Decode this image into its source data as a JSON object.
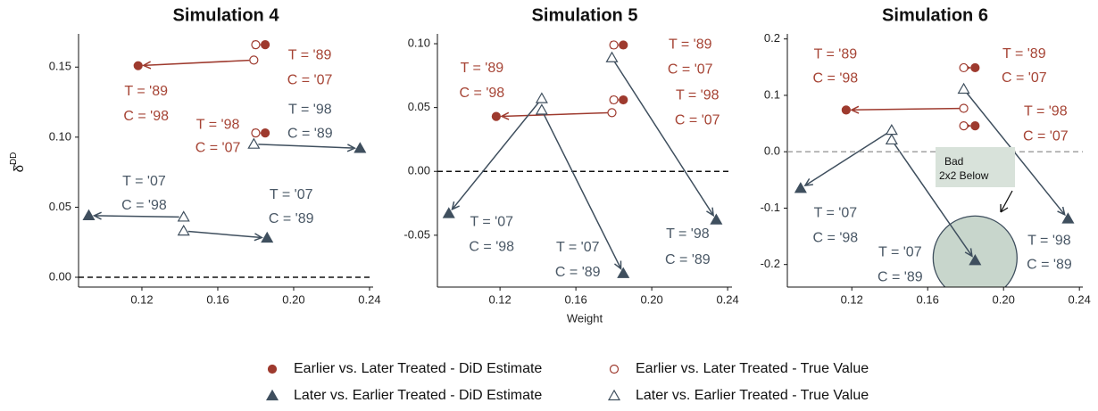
{
  "chart_data": [
    {
      "type": "scatter",
      "title": "Simulation 4",
      "ylabel": "δ̂",
      "ylabel_superscript": "DD",
      "xlim": [
        0.0866,
        0.2419
      ],
      "ylim": [
        -0.007,
        0.1737
      ],
      "xticks": [
        0.12,
        0.16,
        {
          "value": 0.2,
          "label": "0.20"
        },
        0.24
      ],
      "yticks": [
        {
          "value": 0,
          "label": "0.00"
        },
        0.05,
        {
          "value": 0.1,
          "label": "0.10"
        },
        0.15
      ],
      "zero_line_color": "#111111",
      "series": [
        {
          "name": "Earlier vs. Later Treated - DiD Estimate",
          "color": "#9e3a2e",
          "marker": "circle",
          "x": [
            0.118,
            0.185,
            0.185
          ],
          "values": [
            0.151,
            0.166,
            0.103
          ],
          "labels": [
            [
              "T = '89",
              "C = '98"
            ],
            [
              "T = '89",
              "C = '07"
            ],
            [
              "T = '98",
              "C = '07"
            ]
          ]
        },
        {
          "name": "Earlier vs. Later Treated - True Value",
          "color": "#9e3a2e",
          "marker": "circle-open",
          "x": [
            0.179,
            0.18,
            0.18
          ],
          "values": [
            0.155,
            0.166,
            0.103
          ]
        },
        {
          "name": "Later vs. Earlier Treated - DiD Estimate",
          "color": "#3f4f5e",
          "marker": "triangle",
          "x": [
            0.235,
            0.186,
            0.092
          ],
          "values": [
            0.092,
            0.028,
            0.044
          ],
          "labels": [
            [
              "T = '98",
              "C = '89"
            ],
            [
              "T = '07",
              "C = '89"
            ],
            [
              "T = '07",
              "C = '98"
            ]
          ]
        },
        {
          "name": "Later vs. Earlier Treated - True Value",
          "color": "#3f4f5e",
          "marker": "triangle-open",
          "x": [
            0.179,
            0.142,
            0.142
          ],
          "values": [
            0.095,
            0.033,
            0.043
          ]
        }
      ]
    },
    {
      "type": "scatter",
      "title": "Simulation 5",
      "xlabel": "Weight",
      "xlim": [
        0.087,
        0.2423
      ],
      "ylim": [
        -0.0906,
        0.1077
      ],
      "xticks": [
        0.12,
        0.16,
        {
          "value": 0.2,
          "label": "0.20"
        },
        0.24
      ],
      "yticks": [
        -0.05,
        {
          "value": 0,
          "label": "0.00"
        },
        0.05,
        {
          "value": 0.1,
          "label": "0.10"
        }
      ],
      "zero_line_color": "#111111",
      "series": [
        {
          "name": "Earlier vs. Later Treated - DiD Estimate",
          "color": "#9e3a2e",
          "marker": "circle",
          "x": [
            0.118,
            0.185,
            0.185
          ],
          "values": [
            0.043,
            0.099,
            0.056
          ],
          "labels": [
            [
              "T = '89",
              "C = '98"
            ],
            [
              "T = '89",
              "C = '07"
            ],
            [
              "T = '98",
              "C = '07"
            ]
          ]
        },
        {
          "name": "Earlier vs. Later Treated - True Value",
          "color": "#9e3a2e",
          "marker": "circle-open",
          "x": [
            0.179,
            0.18,
            0.18
          ],
          "values": [
            0.046,
            0.099,
            0.056
          ]
        },
        {
          "name": "Later vs. Earlier Treated - DiD Estimate",
          "color": "#3f4f5e",
          "marker": "triangle",
          "x": [
            0.234,
            0.185,
            0.093
          ],
          "values": [
            -0.038,
            -0.08,
            -0.033
          ],
          "labels": [
            [
              "T = '98",
              "C = '89"
            ],
            [
              "T = '07",
              "C = '89"
            ],
            [
              "T = '07",
              "C = '98"
            ]
          ]
        },
        {
          "name": "Later vs. Earlier Treated - True Value",
          "color": "#3f4f5e",
          "marker": "triangle-open",
          "x": [
            0.179,
            0.142,
            0.142
          ],
          "values": [
            0.089,
            0.048,
            0.057
          ]
        }
      ]
    },
    {
      "type": "scatter",
      "title": "Simulation 6",
      "xlim": [
        0.086,
        0.2418
      ],
      "ylim": [
        -0.24,
        0.209
      ],
      "xticks": [
        0.12,
        0.16,
        {
          "value": 0.2,
          "label": "0.20"
        },
        0.24
      ],
      "yticks": [
        -0.2,
        -0.1,
        {
          "value": 0,
          "label": "0.0"
        },
        0.1,
        0.2
      ],
      "zero_line_color": "#999999",
      "annotation": [
        "Bad",
        "2x2 Below"
      ],
      "series": [
        {
          "name": "Earlier vs. Later Treated - DiD Estimate",
          "color": "#9e3a2e",
          "marker": "circle",
          "x": [
            0.117,
            0.185,
            0.185
          ],
          "values": [
            0.074,
            0.149,
            0.046
          ],
          "labels": [
            [
              "T = '89",
              "C = '98"
            ],
            [
              "T = '89",
              "C = '07"
            ],
            [
              "T = '98",
              "C = '07"
            ]
          ]
        },
        {
          "name": "Earlier vs. Later Treated - True Value",
          "color": "#9e3a2e",
          "marker": "circle-open",
          "x": [
            0.179,
            0.179,
            0.179
          ],
          "values": [
            0.077,
            0.149,
            0.046
          ]
        },
        {
          "name": "Later vs. Earlier Treated - DiD Estimate",
          "color": "#3f4f5e",
          "marker": "triangle",
          "x": [
            0.234,
            0.185,
            0.093
          ],
          "values": [
            -0.119,
            -0.193,
            -0.065
          ],
          "labels": [
            [
              "T = '98",
              "C = '89"
            ],
            [
              "T = '07",
              "C = '89"
            ],
            [
              "T = '07",
              "C = '98"
            ]
          ]
        },
        {
          "name": "Later vs. Earlier Treated - True Value",
          "color": "#3f4f5e",
          "marker": "triangle-open",
          "x": [
            0.179,
            0.141,
            0.141
          ],
          "values": [
            0.111,
            0.021,
            0.038
          ]
        }
      ]
    }
  ]
}
